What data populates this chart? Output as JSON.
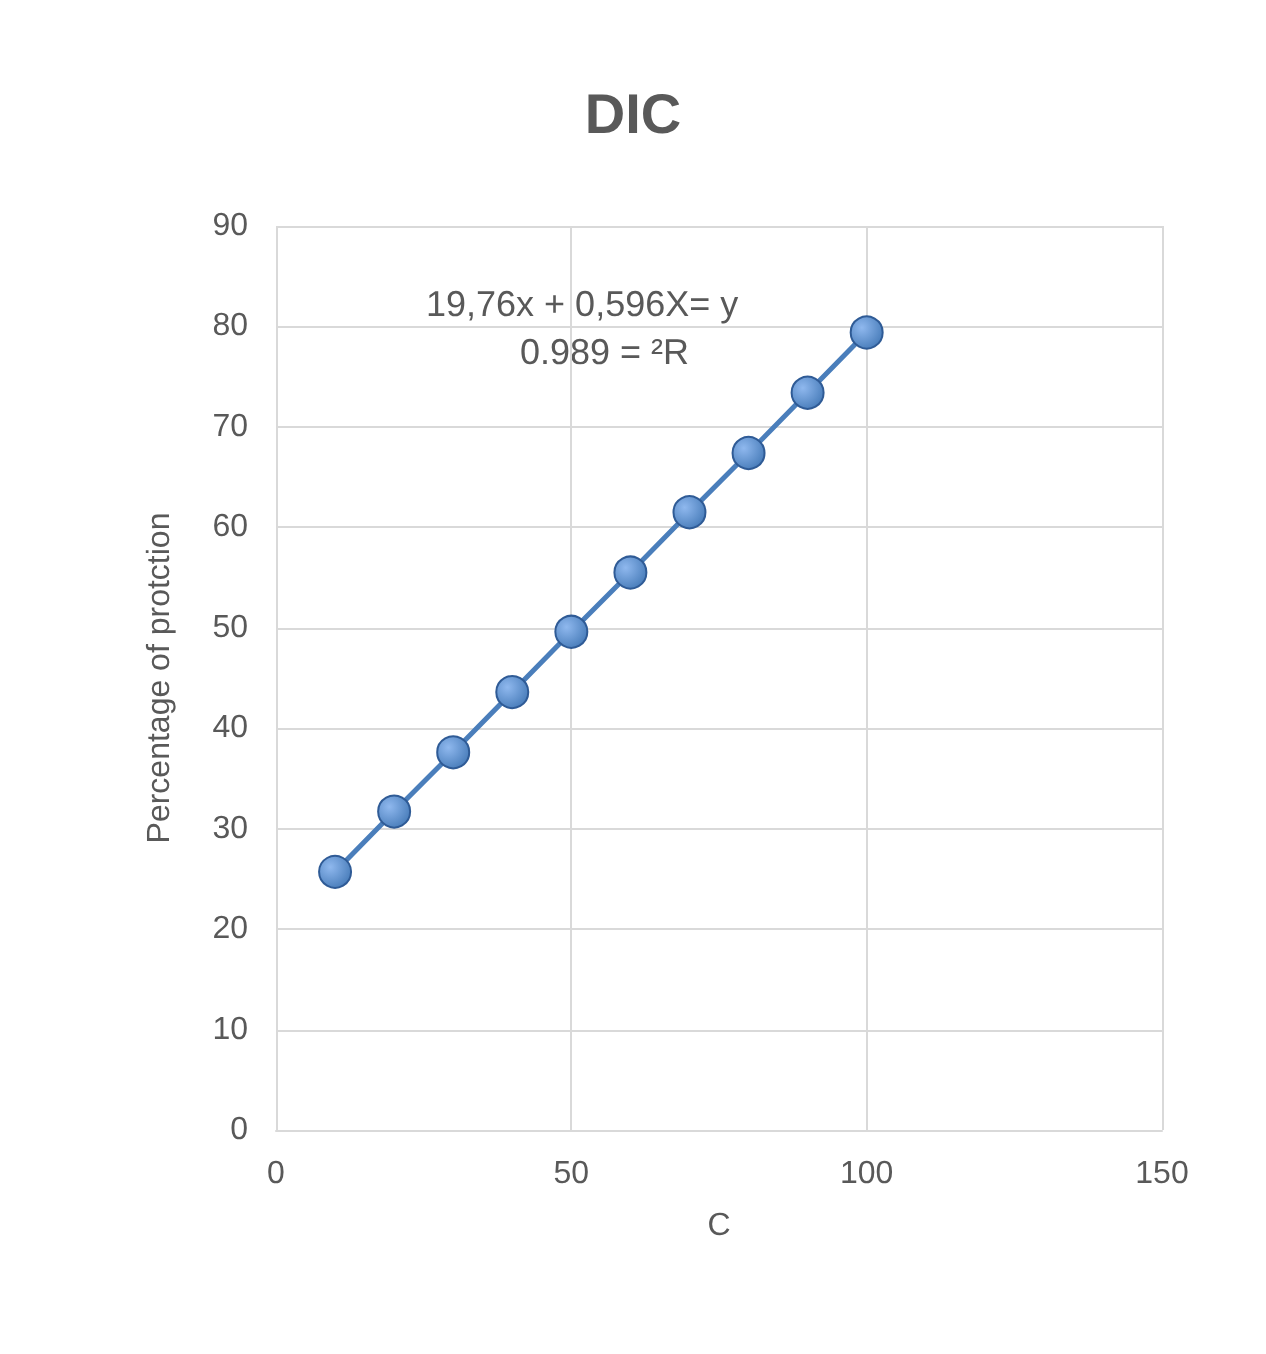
{
  "chart_data": {
    "type": "line",
    "title": "DIC",
    "xlabel": "C",
    "ylabel": "Percentage of protction",
    "x": [
      10,
      20,
      30,
      40,
      50,
      60,
      70,
      80,
      90,
      100
    ],
    "series": [
      {
        "color": "#4a7ebb",
        "values": [
          25.7,
          31.7,
          37.6,
          43.6,
          49.6,
          55.5,
          61.5,
          67.4,
          73.4,
          79.4
        ]
      }
    ],
    "xlim": [
      0,
      150
    ],
    "xticks": [
      0,
      50,
      100,
      150
    ],
    "ylim": [
      0,
      90
    ],
    "yticks": [
      0,
      10,
      20,
      30,
      40,
      50,
      60,
      70,
      80,
      90
    ],
    "grid": true,
    "marker": "circle",
    "line_style": "solid",
    "annotations": [
      "19,76x + 0,596X= y",
      "0.989 = ²R"
    ]
  }
}
